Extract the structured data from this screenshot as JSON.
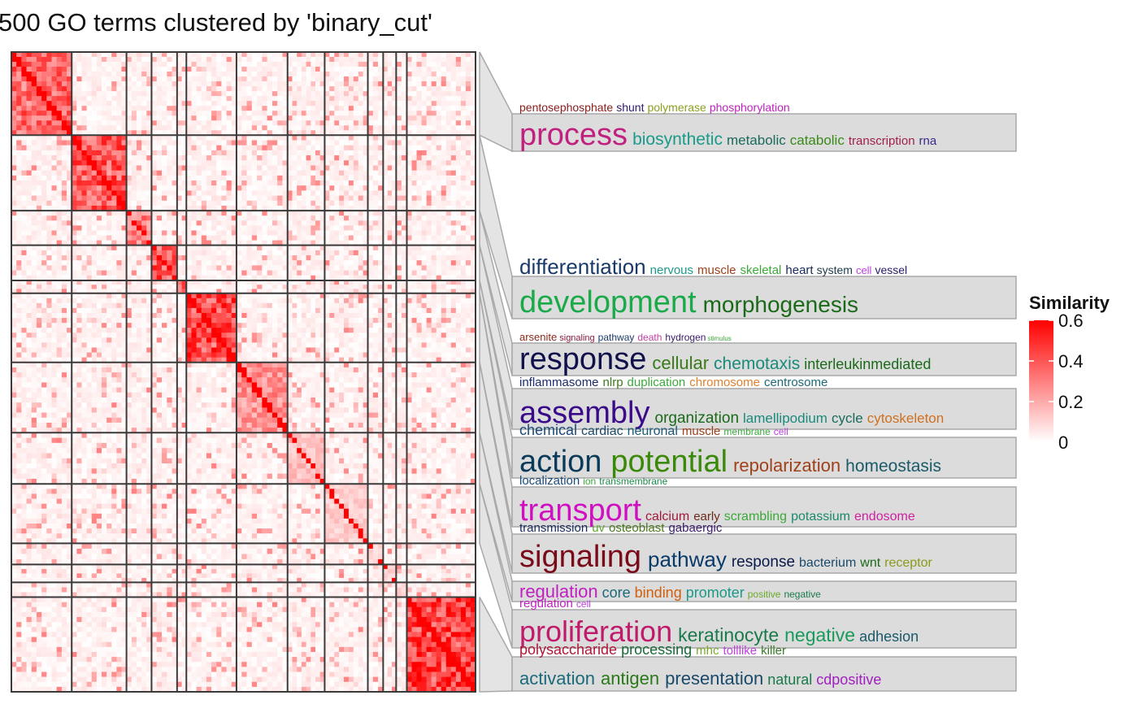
{
  "title": "500 GO terms clustered by 'binary_cut'",
  "legend": {
    "title": "Similarity",
    "ticks": [
      "0.6",
      "0.4",
      "0.2",
      "0"
    ],
    "tick_values": [
      0.6,
      0.4,
      0.2,
      0
    ],
    "range": [
      0,
      0.6
    ],
    "colors": {
      "low": "#ffffff",
      "high": "#ff0000"
    }
  },
  "chart_data": {
    "type": "heatmap",
    "title": "500 GO terms clustered by 'binary_cut'",
    "n_terms": 500,
    "value_name": "Similarity",
    "value_range": [
      0,
      0.6
    ],
    "cluster_boundaries": [
      0,
      130,
      248,
      302,
      357,
      377,
      485,
      595,
      675,
      768,
      801,
      829,
      852,
      1000
    ],
    "cluster_sizes": [
      65,
      59,
      27,
      27,
      10,
      54,
      55,
      40,
      47,
      16,
      14,
      12,
      74
    ],
    "cluster_mean_similarity": [
      0.35,
      0.38,
      0.3,
      0.4,
      0.45,
      0.42,
      0.25,
      0.15,
      0.12,
      0.1,
      0.1,
      0.1,
      0.45
    ]
  },
  "wordclouds": [
    {
      "lines": [
        [
          [
            "pentosephosphate",
            14,
            "#8b1a1a"
          ],
          [
            "shunt",
            14,
            "#2f1a6b"
          ],
          [
            "polymerase",
            14,
            "#8ba01f"
          ],
          [
            "phosphorylation",
            14,
            "#c020c0"
          ]
        ],
        [
          [
            "process",
            38,
            "#c0207e"
          ],
          [
            "biosynthetic",
            21,
            "#1a9a8a"
          ],
          [
            "metabolic",
            17,
            "#1a6a5a"
          ],
          [
            "catabolic",
            17,
            "#3a8a1a"
          ],
          [
            "transcription",
            15,
            "#a0204a"
          ],
          [
            "rna",
            15,
            "#3a2a8a"
          ]
        ]
      ]
    },
    {
      "lines": [
        [
          [
            "differentiation",
            26,
            "#1a3a6a"
          ],
          [
            "nervous",
            15,
            "#1a9a8a"
          ],
          [
            "muscle",
            15,
            "#a0401a"
          ],
          [
            "skeletal",
            15,
            "#3aaa3a"
          ],
          [
            "heart",
            15,
            "#1a2a5a"
          ],
          [
            "system",
            14,
            "#1a3a4a"
          ],
          [
            "cell",
            13,
            "#c040e0"
          ],
          [
            "vessel",
            14,
            "#2a1a6a"
          ]
        ],
        [
          [
            "development",
            38,
            "#1aaa4a"
          ],
          [
            "morphogenesis",
            28,
            "#1a6a1a"
          ]
        ]
      ]
    },
    {
      "lines": [
        [
          [
            "arsenite",
            13,
            "#8b2a1a"
          ],
          [
            "signaling",
            11,
            "#8b1a3a"
          ],
          [
            "pathway",
            12,
            "#1a3a6a"
          ],
          [
            "death",
            12,
            "#c040a0"
          ],
          [
            "hydrogen",
            12,
            "#3a1a6a"
          ],
          [
            "stimulus",
            8,
            "#3aaa3a"
          ]
        ],
        [
          [
            "response",
            38,
            "#10104a"
          ],
          [
            "cellular",
            22,
            "#3a7a1a"
          ],
          [
            "chemotaxis",
            21,
            "#1a8a7a"
          ],
          [
            "interleukinmediated",
            18,
            "#1a6a1a"
          ]
        ]
      ]
    },
    {
      "lines": [
        [
          [
            "inflammasome",
            15,
            "#1a2a6a"
          ],
          [
            "nlrp",
            15,
            "#3a7a1a"
          ],
          [
            "duplication",
            15,
            "#3aaa3a"
          ],
          [
            "chromosome",
            15,
            "#e08030"
          ],
          [
            "centrosome",
            15,
            "#1a6a7a"
          ]
        ],
        [
          [
            "assembly",
            38,
            "#3a0a8a"
          ],
          [
            "organization",
            19,
            "#1a6a1a"
          ],
          [
            "lamellipodium",
            17,
            "#1a8a7a"
          ],
          [
            "cycle",
            17,
            "#1a6a5a"
          ],
          [
            "cytoskeleton",
            17,
            "#d07020"
          ]
        ]
      ]
    },
    {
      "lines": [
        [
          [
            "chemical",
            18,
            "#1a4a7a"
          ],
          [
            "cardiac",
            16,
            "#1a4a6a"
          ],
          [
            "neuronal",
            16,
            "#1a5a7a"
          ],
          [
            "muscle",
            15,
            "#a0401a"
          ],
          [
            "membrane",
            12,
            "#3aaa3a"
          ],
          [
            "cell",
            12,
            "#c040e0"
          ]
        ],
        [
          [
            "action",
            38,
            "#0a3a5a"
          ],
          [
            "potential",
            38,
            "#3a8a0a"
          ],
          [
            "repolarization",
            22,
            "#a0401a"
          ],
          [
            "homeostasis",
            21,
            "#1a5a6a"
          ]
        ]
      ]
    },
    {
      "lines": [
        [
          [
            "localization",
            15,
            "#1a4a7a"
          ],
          [
            "ion",
            12,
            "#3aaa3a"
          ],
          [
            "transmembrane",
            12,
            "#1a8a4a"
          ]
        ],
        [
          [
            "transport",
            38,
            "#d010c0"
          ],
          [
            "calcium",
            16,
            "#a01a3a"
          ],
          [
            "early",
            15,
            "#6a2a1a"
          ],
          [
            "scrambling",
            16,
            "#3aaa3a"
          ],
          [
            "potassium",
            16,
            "#1a8a6a"
          ],
          [
            "endosome",
            16,
            "#d020a0"
          ]
        ]
      ]
    },
    {
      "lines": [
        [
          [
            "transmission",
            15,
            "#1a2a5a"
          ],
          [
            "uv",
            15,
            "#5aaa2a"
          ],
          [
            "osteoblast",
            15,
            "#4a7a1a"
          ],
          [
            "gabaergic",
            15,
            "#3a1a6a"
          ]
        ],
        [
          [
            "signaling",
            38,
            "#7a0a1a"
          ],
          [
            "pathway",
            26,
            "#0a3a6a"
          ],
          [
            "response",
            19,
            "#0a1a4a"
          ],
          [
            "bacterium",
            16,
            "#1a4a6a"
          ],
          [
            "wnt",
            16,
            "#1a6a1a"
          ],
          [
            "receptor",
            16,
            "#8a9a1a"
          ]
        ]
      ]
    },
    {
      "lines": [
        [
          [
            "regulation",
            22,
            "#c020c0"
          ],
          [
            "core",
            18,
            "#1a6a7a"
          ],
          [
            "binding",
            18,
            "#d06010"
          ],
          [
            "promoter",
            18,
            "#1a9a8a"
          ],
          [
            "positive",
            12,
            "#6aaa2a"
          ],
          [
            "negative",
            12,
            "#1a7a4a"
          ]
        ]
      ]
    },
    {
      "lines": [
        [
          [
            "regulation",
            15,
            "#c020c0"
          ],
          [
            "cell",
            12,
            "#c040e0"
          ]
        ],
        [
          [
            "proliferation",
            36,
            "#c01a6a"
          ],
          [
            "keratinocyte",
            23,
            "#1a7a4a"
          ],
          [
            "negative",
            23,
            "#1a9a5a"
          ],
          [
            "adhesion",
            18,
            "#1a5a6a"
          ]
        ]
      ]
    },
    {
      "lines": [
        [
          [
            "polysaccharide",
            18,
            "#b01a3a"
          ],
          [
            "processing",
            18,
            "#1a6a3a"
          ],
          [
            "mhc",
            15,
            "#7aaa2a"
          ],
          [
            "tolllike",
            15,
            "#c040e0"
          ],
          [
            "killer",
            15,
            "#3a7a2a"
          ]
        ],
        [
          [
            "activation",
            22,
            "#1a6a7a"
          ],
          [
            "antigen",
            22,
            "#2a7a1a"
          ],
          [
            "presentation",
            22,
            "#1a4a6a"
          ],
          [
            "natural",
            18,
            "#1a7a4a"
          ],
          [
            "cdpositive",
            18,
            "#a020c0"
          ]
        ]
      ]
    }
  ]
}
